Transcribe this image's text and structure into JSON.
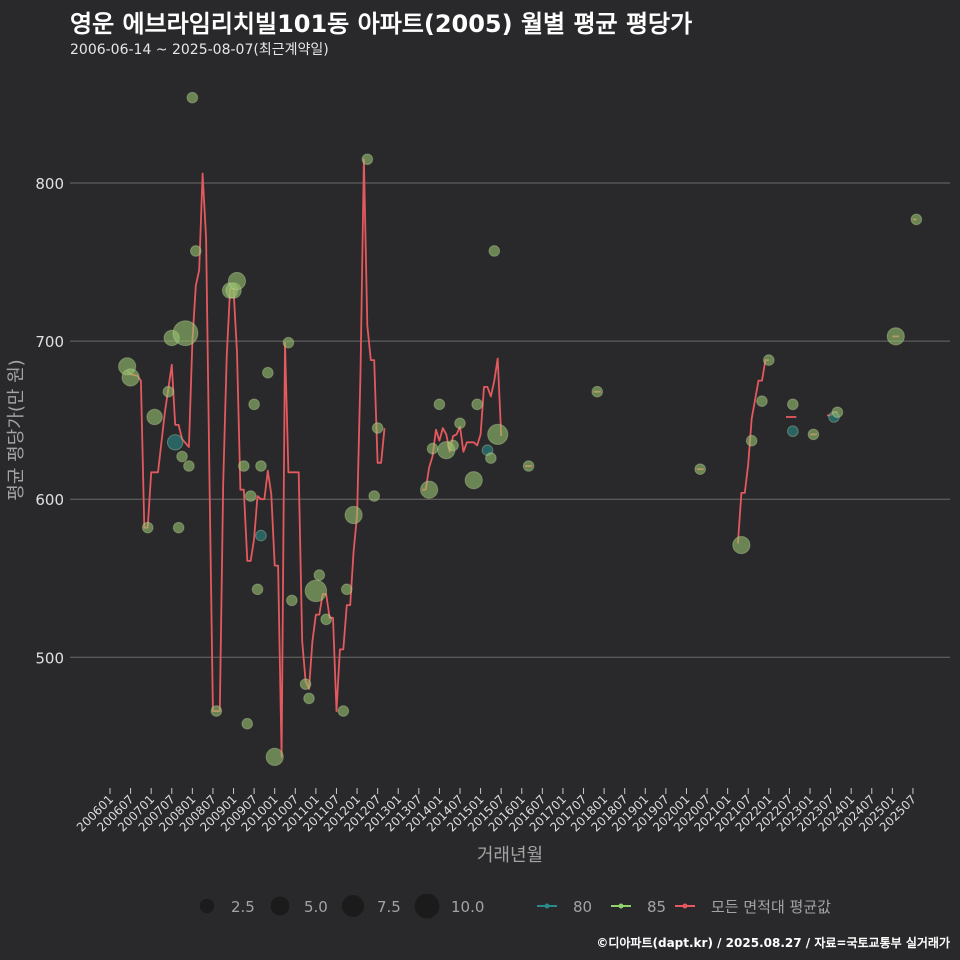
{
  "header": {
    "title": "영운 에브라임리치빌101동 아파트(2005) 월별 평균 평당가",
    "subtitle": "2006-06-14 ~ 2025-08-07(최근계약일)"
  },
  "footer": {
    "text": "©디아파트(dapt.kr) / 2025.08.27 / 자료=국토교통부 실거래가"
  },
  "colors": {
    "background": "#29292b",
    "grid": "#6a6a6a",
    "avg_line": "#e3595e",
    "area_80": "#2a8a8a",
    "area_85": "#8fd46a",
    "point_fill": "#97c26e"
  },
  "chart_data": {
    "type": "line",
    "xlabel": "거래년월",
    "ylabel": "평균 평당가(만 원)",
    "ylim": [
      425,
      855
    ],
    "yticks": [
      500,
      600,
      700,
      800
    ],
    "x_tick_labels": [
      "200601",
      "200607",
      "200701",
      "200707",
      "200801",
      "200807",
      "200901",
      "200907",
      "201001",
      "201007",
      "201101",
      "201107",
      "201201",
      "201207",
      "201301",
      "201307",
      "201401",
      "201407",
      "201501",
      "201507",
      "201601",
      "201607",
      "201701",
      "201707",
      "201801",
      "201807",
      "201901",
      "201907",
      "202001",
      "202007",
      "202101",
      "202107",
      "202201",
      "202207",
      "202301",
      "202307",
      "202401",
      "202407",
      "202501",
      "202507"
    ],
    "grid": true,
    "legend": {
      "position": "bottom",
      "size_items": [
        2.5,
        5.0,
        7.5,
        10.0
      ],
      "series_items": [
        {
          "label": "80",
          "color": "#2a8a8a"
        },
        {
          "label": "85",
          "color": "#8fd46a"
        },
        {
          "label": "모든 면적대 평균값",
          "color": "#e3595e"
        }
      ]
    },
    "average_line_segments": [
      [
        [
          "2006-06",
          681
        ],
        [
          "2006-07",
          679
        ],
        [
          "2006-09",
          678
        ],
        [
          "2006-10",
          675
        ],
        [
          "2006-11",
          582
        ],
        [
          "2006-12",
          582
        ],
        [
          "2007-01",
          617
        ],
        [
          "2007-03",
          617
        ],
        [
          "2007-05",
          655
        ],
        [
          "2007-07",
          685
        ],
        [
          "2007-08",
          647
        ],
        [
          "2007-09",
          647
        ],
        [
          "2007-10",
          638
        ],
        [
          "2007-12",
          633
        ],
        [
          "2008-01",
          700
        ],
        [
          "2008-02",
          735
        ],
        [
          "2008-03",
          745
        ],
        [
          "2008-04",
          806
        ],
        [
          "2008-05",
          765
        ],
        [
          "2008-06",
          612
        ],
        [
          "2008-07",
          466
        ],
        [
          "2008-08",
          466
        ],
        [
          "2008-09",
          466
        ],
        [
          "2008-10",
          610
        ],
        [
          "2008-11",
          690
        ],
        [
          "2008-12",
          733
        ],
        [
          "2009-01",
          733
        ],
        [
          "2009-02",
          693
        ],
        [
          "2009-03",
          606
        ],
        [
          "2009-04",
          606
        ],
        [
          "2009-05",
          561
        ],
        [
          "2009-06",
          561
        ],
        [
          "2009-07",
          575
        ],
        [
          "2009-08",
          602
        ],
        [
          "2009-09",
          600
        ],
        [
          "2009-10",
          600
        ],
        [
          "2009-11",
          618
        ],
        [
          "2009-12",
          603
        ],
        [
          "2010-01",
          558
        ],
        [
          "2010-02",
          558
        ],
        [
          "2010-03",
          437
        ],
        [
          "2010-04",
          699
        ],
        [
          "2010-05",
          617
        ],
        [
          "2010-06",
          617
        ],
        [
          "2010-07",
          617
        ],
        [
          "2010-08",
          617
        ],
        [
          "2010-09",
          510
        ],
        [
          "2010-10",
          485
        ],
        [
          "2010-11",
          480
        ],
        [
          "2010-12",
          510
        ],
        [
          "2011-01",
          527
        ],
        [
          "2011-02",
          527
        ],
        [
          "2011-03",
          540
        ],
        [
          "2011-04",
          540
        ],
        [
          "2011-05",
          525
        ],
        [
          "2011-06",
          525
        ],
        [
          "2011-07",
          466
        ],
        [
          "2011-08",
          505
        ],
        [
          "2011-09",
          505
        ],
        [
          "2011-10",
          533
        ],
        [
          "2011-11",
          533
        ],
        [
          "2011-12",
          567
        ],
        [
          "2012-01",
          590
        ],
        [
          "2012-02",
          680
        ],
        [
          "2012-03",
          815
        ],
        [
          "2012-04",
          710
        ],
        [
          "2012-05",
          688
        ],
        [
          "2012-06",
          688
        ],
        [
          "2012-07",
          623
        ],
        [
          "2012-08",
          623
        ],
        [
          "2012-09",
          645
        ]
      ],
      [
        [
          "2013-08",
          606
        ],
        [
          "2013-09",
          606
        ],
        [
          "2013-10",
          620
        ],
        [
          "2013-11",
          627
        ],
        [
          "2013-12",
          644
        ],
        [
          "2014-01",
          637
        ],
        [
          "2014-02",
          645
        ],
        [
          "2014-03",
          641
        ],
        [
          "2014-04",
          630
        ],
        [
          "2014-05",
          640
        ],
        [
          "2014-06",
          641
        ],
        [
          "2014-07",
          646
        ],
        [
          "2014-08",
          630
        ],
        [
          "2014-09",
          636
        ],
        [
          "2014-10",
          636
        ],
        [
          "2014-11",
          636
        ],
        [
          "2014-12",
          634
        ],
        [
          "2015-01",
          641
        ],
        [
          "2015-02",
          671
        ],
        [
          "2015-03",
          671
        ],
        [
          "2015-04",
          665
        ],
        [
          "2015-05",
          675
        ],
        [
          "2015-06",
          689
        ],
        [
          "2015-07",
          640
        ]
      ],
      [
        [
          "2016-02",
          621
        ],
        [
          "2016-03",
          621
        ],
        [
          "2016-04",
          621
        ]
      ],
      [
        [
          "2017-10",
          668
        ],
        [
          "2017-11",
          668
        ],
        [
          "2017-12",
          668
        ]
      ],
      [
        [
          "2020-04",
          619
        ],
        [
          "2020-05",
          619
        ],
        [
          "2020-06",
          619
        ]
      ],
      [
        [
          "2021-04",
          572
        ],
        [
          "2021-05",
          604
        ],
        [
          "2021-06",
          604
        ],
        [
          "2021-07",
          622
        ],
        [
          "2021-08",
          651
        ],
        [
          "2021-09",
          663
        ],
        [
          "2021-10",
          675
        ],
        [
          "2021-11",
          675
        ],
        [
          "2021-12",
          688
        ],
        [
          "2022-01",
          688
        ]
      ],
      [
        [
          "2022-06",
          652
        ],
        [
          "2022-07",
          652
        ],
        [
          "2022-08",
          652
        ],
        [
          "2022-09",
          652
        ]
      ],
      [
        [
          "2023-01",
          641
        ],
        [
          "2023-02",
          641
        ],
        [
          "2023-03",
          641
        ]
      ],
      [
        [
          "2023-06",
          653
        ],
        [
          "2023-07",
          653
        ],
        [
          "2023-08",
          655
        ],
        [
          "2023-09",
          655
        ]
      ],
      [
        [
          "2025-01",
          703
        ],
        [
          "2025-02",
          703
        ],
        [
          "2025-03",
          703
        ]
      ],
      [
        [
          "2025-07",
          777
        ],
        [
          "2025-08",
          777
        ]
      ]
    ],
    "scatter_points": [
      {
        "month": "2006-06",
        "value": 684,
        "size": 4,
        "area": "85"
      },
      {
        "month": "2006-07",
        "value": 677,
        "size": 4,
        "area": "85"
      },
      {
        "month": "2006-12",
        "value": 582,
        "size": 1,
        "area": "85"
      },
      {
        "month": "2007-02",
        "value": 652,
        "size": 3,
        "area": "85"
      },
      {
        "month": "2007-06",
        "value": 668,
        "size": 1,
        "area": "85"
      },
      {
        "month": "2007-07",
        "value": 702,
        "size": 3,
        "area": "85"
      },
      {
        "month": "2007-08",
        "value": 636,
        "size": 3,
        "area": "80"
      },
      {
        "month": "2007-09",
        "value": 582,
        "size": 1,
        "area": "85"
      },
      {
        "month": "2007-10",
        "value": 627,
        "size": 1,
        "area": "85"
      },
      {
        "month": "2007-11",
        "value": 705,
        "size": 10,
        "area": "85"
      },
      {
        "month": "2007-12",
        "value": 621,
        "size": 1,
        "area": "85"
      },
      {
        "month": "2008-01",
        "value": 854,
        "size": 1,
        "area": "85"
      },
      {
        "month": "2008-02",
        "value": 757,
        "size": 1,
        "area": "85"
      },
      {
        "month": "2008-08",
        "value": 466,
        "size": 1,
        "area": "85"
      },
      {
        "month": "2008-12",
        "value": 732,
        "size": 3,
        "area": "85"
      },
      {
        "month": "2009-01",
        "value": 732,
        "size": 3,
        "area": "85"
      },
      {
        "month": "2009-02",
        "value": 738,
        "size": 4,
        "area": "85"
      },
      {
        "month": "2009-04",
        "value": 621,
        "size": 1,
        "area": "85"
      },
      {
        "month": "2009-05",
        "value": 458,
        "size": 1,
        "area": "85"
      },
      {
        "month": "2009-06",
        "value": 602,
        "size": 1,
        "area": "85"
      },
      {
        "month": "2009-07",
        "value": 660,
        "size": 1,
        "area": "85"
      },
      {
        "month": "2009-08",
        "value": 543,
        "size": 1,
        "area": "85"
      },
      {
        "month": "2009-09",
        "value": 577,
        "size": 1,
        "area": "80"
      },
      {
        "month": "2009-09",
        "value": 621,
        "size": 1,
        "area": "85"
      },
      {
        "month": "2009-11",
        "value": 680,
        "size": 1,
        "area": "85"
      },
      {
        "month": "2010-01",
        "value": 437,
        "size": 4,
        "area": "85"
      },
      {
        "month": "2010-05",
        "value": 699,
        "size": 1,
        "area": "85"
      },
      {
        "month": "2010-06",
        "value": 536,
        "size": 1,
        "area": "85"
      },
      {
        "month": "2010-10",
        "value": 483,
        "size": 1,
        "area": "85"
      },
      {
        "month": "2010-11",
        "value": 474,
        "size": 1,
        "area": "85"
      },
      {
        "month": "2011-01",
        "value": 542,
        "size": 7,
        "area": "85"
      },
      {
        "month": "2011-02",
        "value": 552,
        "size": 1,
        "area": "85"
      },
      {
        "month": "2011-04",
        "value": 524,
        "size": 1,
        "area": "85"
      },
      {
        "month": "2011-09",
        "value": 466,
        "size": 1,
        "area": "85"
      },
      {
        "month": "2011-10",
        "value": 543,
        "size": 1,
        "area": "85"
      },
      {
        "month": "2011-12",
        "value": 590,
        "size": 4,
        "area": "85"
      },
      {
        "month": "2012-04",
        "value": 815,
        "size": 1,
        "area": "85"
      },
      {
        "month": "2012-06",
        "value": 602,
        "size": 1,
        "area": "85"
      },
      {
        "month": "2012-07",
        "value": 645,
        "size": 1,
        "area": "85"
      },
      {
        "month": "2013-10",
        "value": 606,
        "size": 4,
        "area": "85"
      },
      {
        "month": "2013-11",
        "value": 632,
        "size": 1,
        "area": "85"
      },
      {
        "month": "2014-01",
        "value": 660,
        "size": 1,
        "area": "85"
      },
      {
        "month": "2014-03",
        "value": 631,
        "size": 4,
        "area": "85"
      },
      {
        "month": "2014-05",
        "value": 634,
        "size": 1,
        "area": "85"
      },
      {
        "month": "2014-07",
        "value": 648,
        "size": 1,
        "area": "85"
      },
      {
        "month": "2014-11",
        "value": 612,
        "size": 4,
        "area": "85"
      },
      {
        "month": "2014-12",
        "value": 660,
        "size": 1,
        "area": "85"
      },
      {
        "month": "2015-03",
        "value": 631,
        "size": 1,
        "area": "80"
      },
      {
        "month": "2015-04",
        "value": 626,
        "size": 1,
        "area": "85"
      },
      {
        "month": "2015-05",
        "value": 757,
        "size": 1,
        "area": "85"
      },
      {
        "month": "2015-06",
        "value": 641,
        "size": 6,
        "area": "85"
      },
      {
        "month": "2016-03",
        "value": 621,
        "size": 1,
        "area": "85"
      },
      {
        "month": "2017-11",
        "value": 668,
        "size": 1,
        "area": "85"
      },
      {
        "month": "2020-05",
        "value": 619,
        "size": 1,
        "area": "85"
      },
      {
        "month": "2021-05",
        "value": 571,
        "size": 4,
        "area": "85"
      },
      {
        "month": "2021-08",
        "value": 637,
        "size": 1,
        "area": "85"
      },
      {
        "month": "2021-11",
        "value": 662,
        "size": 1,
        "area": "85"
      },
      {
        "month": "2022-01",
        "value": 688,
        "size": 1,
        "area": "85"
      },
      {
        "month": "2022-08",
        "value": 643,
        "size": 1,
        "area": "80"
      },
      {
        "month": "2022-08",
        "value": 660,
        "size": 1,
        "area": "85"
      },
      {
        "month": "2023-02",
        "value": 641,
        "size": 1,
        "area": "85"
      },
      {
        "month": "2023-08",
        "value": 652,
        "size": 1,
        "area": "80"
      },
      {
        "month": "2023-09",
        "value": 655,
        "size": 1,
        "area": "85"
      },
      {
        "month": "2025-02",
        "value": 703,
        "size": 4,
        "area": "85"
      },
      {
        "month": "2025-08",
        "value": 777,
        "size": 1,
        "area": "85"
      }
    ]
  }
}
